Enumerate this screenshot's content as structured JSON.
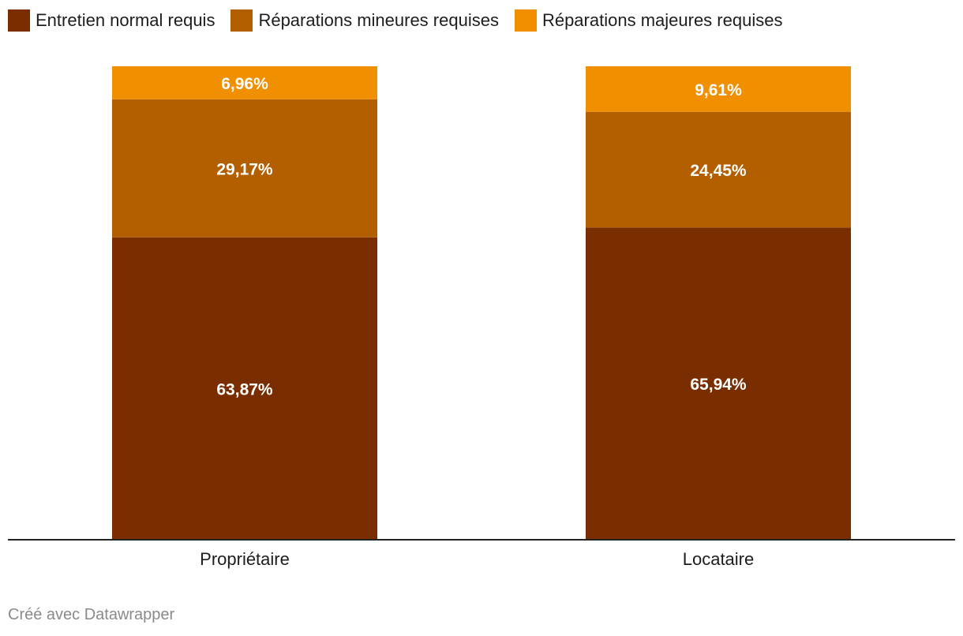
{
  "chart_data": {
    "type": "bar",
    "stacked": true,
    "categories": [
      "Propriétaire",
      "Locataire"
    ],
    "series": [
      {
        "name": "Entretien normal requis",
        "color": "#7a2e00",
        "values": [
          63.87,
          65.94
        ],
        "labels": [
          "63,87%",
          "65,94%"
        ]
      },
      {
        "name": "Réparations mineures requises",
        "color": "#b35f00",
        "values": [
          29.17,
          24.45
        ],
        "labels": [
          "29,17%",
          "24,45%"
        ]
      },
      {
        "name": "Réparations majeures requises",
        "color": "#f09000",
        "values": [
          6.96,
          9.61
        ],
        "labels": [
          "6,96%",
          "9,61%"
        ]
      }
    ],
    "ylim": [
      0,
      100
    ],
    "grid": false,
    "legend": "top-left"
  },
  "footer": "Créé avec Datawrapper"
}
